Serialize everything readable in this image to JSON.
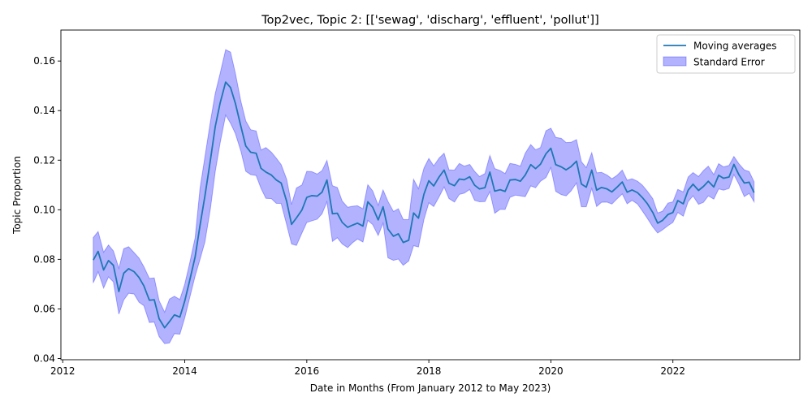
{
  "chart_data": {
    "type": "line",
    "title": "Top2vec, Topic 2: [['sewag', 'discharg', 'effluent', 'pollut']]",
    "xlabel": "Date in Months (From January 2012 to May 2023)",
    "ylabel": "Topic Proportion",
    "xlim": [
      2011.97,
      2024.08
    ],
    "ylim": [
      0.0395,
      0.1725
    ],
    "x_ticks": [
      2012,
      2014,
      2016,
      2018,
      2020,
      2022
    ],
    "y_ticks": [
      0.04,
      0.06,
      0.08,
      0.1,
      0.12,
      0.14,
      0.16
    ],
    "y_tick_labels": [
      "0.04",
      "0.06",
      "0.08",
      "0.10",
      "0.12",
      "0.14",
      "0.16"
    ],
    "grid": false,
    "legend_position": "upper right",
    "colors": {
      "line": "#1f77b4",
      "band": "#0000ff"
    },
    "series": [
      {
        "name": "Moving averages",
        "x": [
          2012.5,
          2012.58,
          2012.67,
          2012.75,
          2012.83,
          2012.92,
          2013.0,
          2013.08,
          2013.17,
          2013.25,
          2013.33,
          2013.42,
          2013.5,
          2013.58,
          2013.67,
          2013.75,
          2013.83,
          2013.92,
          2014.0,
          2014.08,
          2014.17,
          2014.25,
          2014.33,
          2014.42,
          2014.5,
          2014.58,
          2014.67,
          2014.75,
          2014.83,
          2014.92,
          2015.0,
          2015.08,
          2015.17,
          2015.25,
          2015.33,
          2015.42,
          2015.5,
          2015.58,
          2015.67,
          2015.75,
          2015.83,
          2015.92,
          2016.0,
          2016.08,
          2016.17,
          2016.25,
          2016.33,
          2016.42,
          2016.5,
          2016.58,
          2016.67,
          2016.75,
          2016.83,
          2016.92,
          2017.0,
          2017.08,
          2017.17,
          2017.25,
          2017.33,
          2017.42,
          2017.5,
          2017.58,
          2017.67,
          2017.75,
          2017.83,
          2017.92,
          2018.0,
          2018.08,
          2018.17,
          2018.25,
          2018.33,
          2018.42,
          2018.5,
          2018.58,
          2018.67,
          2018.75,
          2018.83,
          2018.92,
          2019.0,
          2019.08,
          2019.17,
          2019.25,
          2019.33,
          2019.42,
          2019.5,
          2019.58,
          2019.67,
          2019.75,
          2019.83,
          2019.92,
          2020.0,
          2020.08,
          2020.17,
          2020.25,
          2020.33,
          2020.42,
          2020.5,
          2020.58,
          2020.67,
          2020.75,
          2020.83,
          2020.92,
          2021.0,
          2021.08,
          2021.17,
          2021.25,
          2021.33,
          2021.42,
          2021.5,
          2021.58,
          2021.67,
          2021.75,
          2021.83,
          2021.92,
          2022.0,
          2022.08,
          2022.17,
          2022.25,
          2022.33,
          2022.42,
          2022.5,
          2022.58,
          2022.67,
          2022.75,
          2022.83,
          2022.92,
          2023.0,
          2023.08,
          2023.17,
          2023.25,
          2023.33
        ],
        "values": [
          0.0797,
          0.0832,
          0.0757,
          0.0795,
          0.0776,
          0.067,
          0.0744,
          0.0762,
          0.075,
          0.0727,
          0.0693,
          0.0635,
          0.0637,
          0.056,
          0.0524,
          0.0549,
          0.0576,
          0.0567,
          0.0632,
          0.0714,
          0.081,
          0.0937,
          0.1055,
          0.12,
          0.1336,
          0.1431,
          0.1515,
          0.1493,
          0.1429,
          0.1336,
          0.1257,
          0.1232,
          0.1228,
          0.1167,
          0.1152,
          0.114,
          0.112,
          0.1108,
          0.1034,
          0.0941,
          0.0967,
          0.0999,
          0.105,
          0.1057,
          0.1055,
          0.1071,
          0.112,
          0.0984,
          0.0986,
          0.0949,
          0.0929,
          0.0938,
          0.0946,
          0.0934,
          0.1032,
          0.101,
          0.0959,
          0.1012,
          0.0922,
          0.0893,
          0.0903,
          0.0868,
          0.0877,
          0.0987,
          0.0966,
          0.1063,
          0.1117,
          0.1096,
          0.1133,
          0.116,
          0.1107,
          0.1097,
          0.1124,
          0.1121,
          0.1133,
          0.1099,
          0.1084,
          0.1089,
          0.1152,
          0.1075,
          0.1081,
          0.1074,
          0.112,
          0.1122,
          0.1115,
          0.114,
          0.1182,
          0.1166,
          0.1184,
          0.1226,
          0.1248,
          0.1182,
          0.1173,
          0.1161,
          0.1174,
          0.1196,
          0.1104,
          0.1091,
          0.116,
          0.1079,
          0.109,
          0.1084,
          0.1072,
          0.109,
          0.1112,
          0.1071,
          0.108,
          0.1069,
          0.1049,
          0.1025,
          0.0989,
          0.0946,
          0.0957,
          0.0981,
          0.0989,
          0.1037,
          0.1024,
          0.1079,
          0.1103,
          0.1078,
          0.1094,
          0.1115,
          0.1092,
          0.1139,
          0.1127,
          0.1132,
          0.1183,
          0.1142,
          0.1108,
          0.1111,
          0.1069
        ]
      },
      {
        "name": "Standard Error",
        "type": "band",
        "lower": [
          0.0705,
          0.075,
          0.0684,
          0.0729,
          0.0709,
          0.0579,
          0.0636,
          0.0663,
          0.066,
          0.0627,
          0.0613,
          0.0545,
          0.0547,
          0.0488,
          0.046,
          0.0463,
          0.05,
          0.0498,
          0.0564,
          0.0644,
          0.0733,
          0.08,
          0.087,
          0.1004,
          0.1155,
          0.127,
          0.1382,
          0.1349,
          0.1307,
          0.1236,
          0.1155,
          0.1142,
          0.1138,
          0.1086,
          0.1046,
          0.1045,
          0.1026,
          0.1025,
          0.094,
          0.0862,
          0.0856,
          0.0906,
          0.0949,
          0.0955,
          0.0962,
          0.0984,
          0.1032,
          0.0872,
          0.0887,
          0.0862,
          0.0847,
          0.0867,
          0.0882,
          0.087,
          0.0957,
          0.094,
          0.0896,
          0.0946,
          0.0806,
          0.0796,
          0.0801,
          0.0776,
          0.0793,
          0.0855,
          0.085,
          0.0961,
          0.1028,
          0.1013,
          0.1053,
          0.1092,
          0.1045,
          0.1031,
          0.1062,
          0.1067,
          0.1082,
          0.1038,
          0.1032,
          0.1033,
          0.1073,
          0.0986,
          0.1002,
          0.1001,
          0.105,
          0.1059,
          0.1056,
          0.1053,
          0.1096,
          0.1089,
          0.1115,
          0.113,
          0.117,
          0.1074,
          0.1061,
          0.1056,
          0.1076,
          0.1108,
          0.1012,
          0.1012,
          0.1086,
          0.1013,
          0.103,
          0.1031,
          0.1023,
          0.1043,
          0.1064,
          0.1024,
          0.1038,
          0.1023,
          0.0995,
          0.0966,
          0.0931,
          0.0906,
          0.0919,
          0.0936,
          0.0949,
          0.0989,
          0.0974,
          0.1033,
          0.1056,
          0.1022,
          0.103,
          0.1056,
          0.1043,
          0.1084,
          0.1079,
          0.1086,
          0.1142,
          0.1104,
          0.1053,
          0.1066,
          0.1032
        ],
        "upper": [
          0.0888,
          0.0912,
          0.0829,
          0.0858,
          0.0834,
          0.0764,
          0.0843,
          0.0851,
          0.0827,
          0.0805,
          0.077,
          0.0723,
          0.0725,
          0.0633,
          0.0587,
          0.064,
          0.0651,
          0.0638,
          0.07,
          0.0784,
          0.0887,
          0.1086,
          0.1213,
          0.1355,
          0.147,
          0.155,
          0.1646,
          0.1636,
          0.155,
          0.1437,
          0.1358,
          0.1323,
          0.1318,
          0.1241,
          0.1251,
          0.1232,
          0.1208,
          0.1182,
          0.1123,
          0.1021,
          0.1088,
          0.11,
          0.1155,
          0.1154,
          0.1144,
          0.1158,
          0.1199,
          0.1097,
          0.109,
          0.1035,
          0.101,
          0.1014,
          0.1016,
          0.1004,
          0.1101,
          0.1076,
          0.1018,
          0.108,
          0.1034,
          0.0993,
          0.1004,
          0.0961,
          0.096,
          0.1123,
          0.1085,
          0.1168,
          0.1207,
          0.1177,
          0.1209,
          0.1228,
          0.1161,
          0.116,
          0.1187,
          0.1176,
          0.1183,
          0.1155,
          0.1134,
          0.1146,
          0.1219,
          0.1166,
          0.1158,
          0.1146,
          0.1187,
          0.1183,
          0.1176,
          0.1228,
          0.1263,
          0.1242,
          0.1251,
          0.1319,
          0.1329,
          0.1292,
          0.1288,
          0.1271,
          0.1272,
          0.1283,
          0.1194,
          0.117,
          0.123,
          0.1149,
          0.1151,
          0.114,
          0.1125,
          0.1138,
          0.116,
          0.1119,
          0.1125,
          0.1115,
          0.1099,
          0.1075,
          0.1045,
          0.0987,
          0.0994,
          0.1027,
          0.1032,
          0.1082,
          0.1072,
          0.1132,
          0.115,
          0.1134,
          0.1158,
          0.1176,
          0.1142,
          0.1186,
          0.1173,
          0.1179,
          0.1215,
          0.1186,
          0.1161,
          0.1154,
          0.1113
        ]
      }
    ]
  }
}
